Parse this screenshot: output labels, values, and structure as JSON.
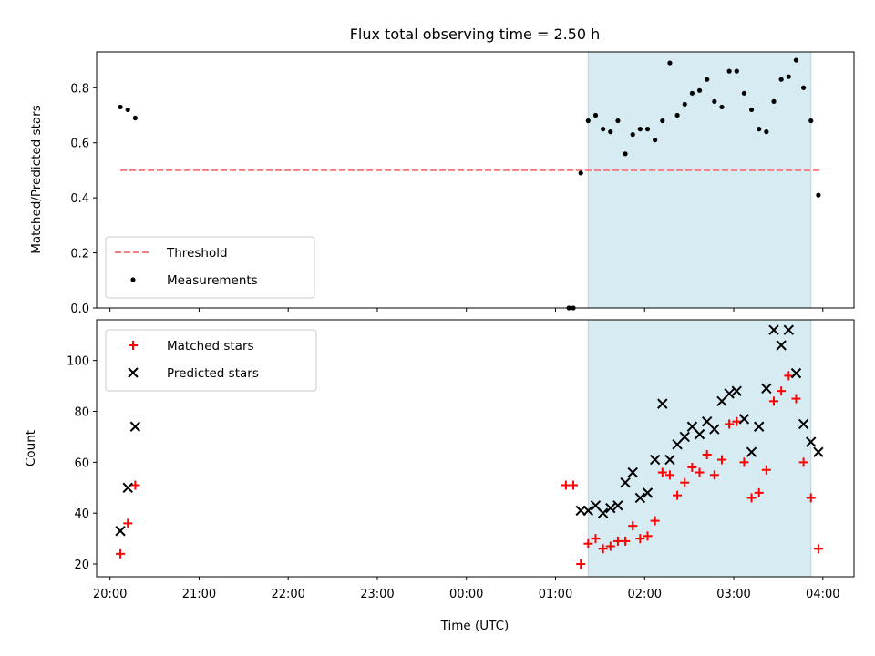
{
  "chart_data": [
    {
      "type": "scatter",
      "title": "Flux total observing time = 2.50 h",
      "xlabel": "",
      "ylabel": "Matched/Predicted stars",
      "ylim": [
        0,
        0.93
      ],
      "yticks": [
        0.0,
        0.2,
        0.4,
        0.6,
        0.8
      ],
      "ytick_labels": [
        "0.0",
        "0.2",
        "0.4",
        "0.6",
        "0.8"
      ],
      "shaded_region": {
        "x_start": "01:22",
        "x_end": "03:52",
        "color": "#add8e6"
      },
      "legend": {
        "location": "lower-left",
        "entries": [
          "Threshold",
          "Measurements"
        ]
      },
      "series": [
        {
          "name": "Threshold",
          "kind": "dashed-line",
          "color": "#f08080",
          "x": [
            "20:07",
            "03:59"
          ],
          "y": [
            0.5,
            0.5
          ]
        },
        {
          "name": "Measurements",
          "kind": "points",
          "color": "#000000",
          "x": [
            "20:07",
            "20:12",
            "20:17",
            "01:09",
            "01:12",
            "01:17",
            "01:22",
            "01:27",
            "01:32",
            "01:37",
            "01:42",
            "01:47",
            "01:52",
            "01:57",
            "02:02",
            "02:07",
            "02:12",
            "02:17",
            "02:22",
            "02:27",
            "02:32",
            "02:37",
            "02:42",
            "02:47",
            "02:52",
            "02:57",
            "03:02",
            "03:07",
            "03:12",
            "03:17",
            "03:22",
            "03:27",
            "03:32",
            "03:37",
            "03:42",
            "03:47",
            "03:52",
            "03:57"
          ],
          "y": [
            0.73,
            0.72,
            0.69,
            0.0,
            0.0,
            0.49,
            0.68,
            0.7,
            0.65,
            0.64,
            0.68,
            0.56,
            0.63,
            0.65,
            0.65,
            0.61,
            0.68,
            0.89,
            0.7,
            0.74,
            0.78,
            0.79,
            0.83,
            0.75,
            0.73,
            0.86,
            0.86,
            0.78,
            0.72,
            0.65,
            0.64,
            0.75,
            0.83,
            0.84,
            0.9,
            0.8,
            0.68,
            0.41
          ]
        }
      ]
    },
    {
      "type": "scatter",
      "title": "",
      "xlabel": "Time (UTC)",
      "ylabel": "Count",
      "ylim": [
        15,
        116
      ],
      "yticks": [
        20,
        40,
        60,
        80,
        100
      ],
      "ytick_labels": [
        "20",
        "40",
        "60",
        "80",
        "100"
      ],
      "xlim": [
        "19:51",
        "04:21"
      ],
      "xticks": [
        "20:00",
        "21:00",
        "22:00",
        "23:00",
        "00:00",
        "01:00",
        "02:00",
        "03:00",
        "04:00"
      ],
      "xtick_labels": [
        "20:00",
        "21:00",
        "22:00",
        "23:00",
        "00:00",
        "01:00",
        "02:00",
        "03:00",
        "04:00"
      ],
      "shaded_region": {
        "x_start": "01:22",
        "x_end": "03:52",
        "color": "#add8e6"
      },
      "legend": {
        "location": "top-left",
        "entries": [
          "Matched stars",
          "Predicted stars"
        ]
      },
      "series": [
        {
          "name": "Matched stars",
          "kind": "plus",
          "color": "#ff0000",
          "x": [
            "20:07",
            "20:12",
            "20:17",
            "01:07",
            "01:12",
            "01:17",
            "01:22",
            "01:27",
            "01:32",
            "01:37",
            "01:42",
            "01:47",
            "01:52",
            "01:57",
            "02:02",
            "02:07",
            "02:12",
            "02:17",
            "02:22",
            "02:27",
            "02:32",
            "02:37",
            "02:42",
            "02:47",
            "02:52",
            "02:57",
            "03:02",
            "03:07",
            "03:12",
            "03:17",
            "03:22",
            "03:27",
            "03:32",
            "03:37",
            "03:42",
            "03:47",
            "03:52",
            "03:57"
          ],
          "y": [
            24,
            36,
            51,
            51,
            51,
            20,
            28,
            30,
            26,
            27,
            29,
            29,
            35,
            30,
            31,
            37,
            56,
            55,
            47,
            52,
            58,
            56,
            63,
            55,
            61,
            75,
            76,
            60,
            46,
            48,
            57,
            84,
            88,
            94,
            85,
            60,
            46,
            26
          ]
        },
        {
          "name": "Predicted stars",
          "kind": "cross",
          "color": "#000000",
          "x": [
            "20:07",
            "20:12",
            "20:17",
            "01:17",
            "01:22",
            "01:27",
            "01:32",
            "01:37",
            "01:42",
            "01:47",
            "01:52",
            "01:57",
            "02:02",
            "02:07",
            "02:12",
            "02:17",
            "02:22",
            "02:27",
            "02:32",
            "02:37",
            "02:42",
            "02:47",
            "02:52",
            "02:57",
            "03:02",
            "03:07",
            "03:12",
            "03:17",
            "03:22",
            "03:27",
            "03:32",
            "03:37",
            "03:42",
            "03:47",
            "03:52",
            "03:57"
          ],
          "y": [
            33,
            50,
            74,
            41,
            41,
            43,
            40,
            42,
            43,
            52,
            56,
            46,
            48,
            61,
            83,
            61,
            67,
            70,
            74,
            71,
            76,
            73,
            84,
            87,
            88,
            77,
            64,
            74,
            89,
            112,
            106,
            112,
            95,
            75,
            68,
            64
          ]
        }
      ]
    }
  ]
}
